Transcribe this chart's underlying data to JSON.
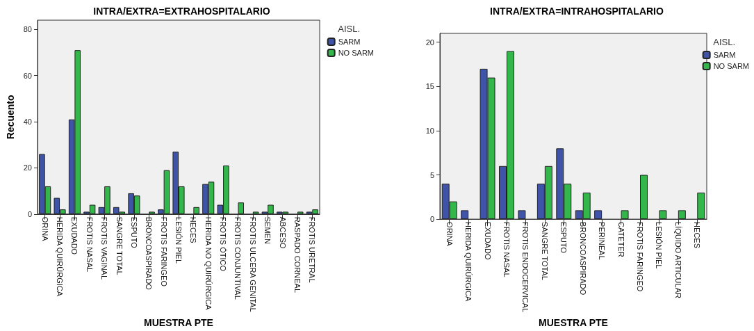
{
  "chart_data": [
    {
      "type": "bar",
      "title": "INTRA/EXTRA=EXTRAHOSPITALARIO",
      "xlabel": "MUESTRA PTE",
      "ylabel": "Recuento",
      "legend_title": "AISL.",
      "legend": "top right",
      "grid": false,
      "categories": [
        "ORINA",
        "HERIDA QUIRÚRGICA",
        "EXUDADO",
        "FROTIS NASAL",
        "FROTIS VAGINAL",
        "SANGRE TOTAL",
        "ESPUTO",
        "BRONCOASPIRADO",
        "FROTIS FARINGEO",
        "LESIÓN PIEL",
        "HECES",
        "HERIDA NO QUIRÚRGICA",
        "FROTIS ÓTICO",
        "FROTIS CONJUNTIVAL",
        "FROTIS ULCERA GENITAL",
        "SEMEN",
        "ABCESO",
        "RASPADO CORNEAL",
        "FROTIS URETRAL"
      ],
      "series": [
        {
          "name": "SARM",
          "color": "#3f54a8",
          "values": [
            26,
            7,
            41,
            1,
            3,
            3,
            9,
            null,
            2,
            27,
            null,
            13,
            4,
            null,
            null,
            1,
            1,
            null,
            1
          ]
        },
        {
          "name": "NO SARM",
          "color": "#33b74a",
          "values": [
            12,
            2,
            71,
            4,
            12,
            1,
            8,
            1,
            19,
            12,
            3,
            14,
            21,
            5,
            1,
            4,
            1,
            1,
            2
          ]
        }
      ],
      "ylim": [
        0,
        84
      ],
      "yticks": [
        0,
        20,
        40,
        60,
        80
      ]
    },
    {
      "type": "bar",
      "title": "INTRA/EXTRA=INTRAHOSPITALARIO",
      "xlabel": "MUESTRA PTE",
      "legend_title": "AISL.",
      "legend": "top right",
      "grid": false,
      "categories": [
        "ORINA",
        "HERIDA QUIRÚRGICA",
        "EXUDADO",
        "FROTIS NASAL",
        "FROTIS ENDOCERVICAL",
        "SANGRE TOTAL",
        "ESPUTO",
        "BRONCOASPIRADO",
        "PERINEAL",
        "CATETER",
        "FROTIS FARINGEO",
        "LESIÓN PIEL",
        "LÍQUIDO ARTICULAR",
        "HECES"
      ],
      "series": [
        {
          "name": "SARM",
          "color": "#3f54a8",
          "values": [
            4,
            1,
            17,
            6,
            1,
            4,
            8,
            1,
            1,
            null,
            null,
            null,
            null,
            null
          ]
        },
        {
          "name": "NO SARM",
          "color": "#33b74a",
          "values": [
            2,
            null,
            16,
            19,
            null,
            6,
            4,
            3,
            null,
            1,
            5,
            1,
            1,
            3
          ]
        }
      ],
      "ylim": [
        0,
        21
      ],
      "yticks": [
        0,
        5,
        10,
        15,
        20
      ]
    }
  ]
}
